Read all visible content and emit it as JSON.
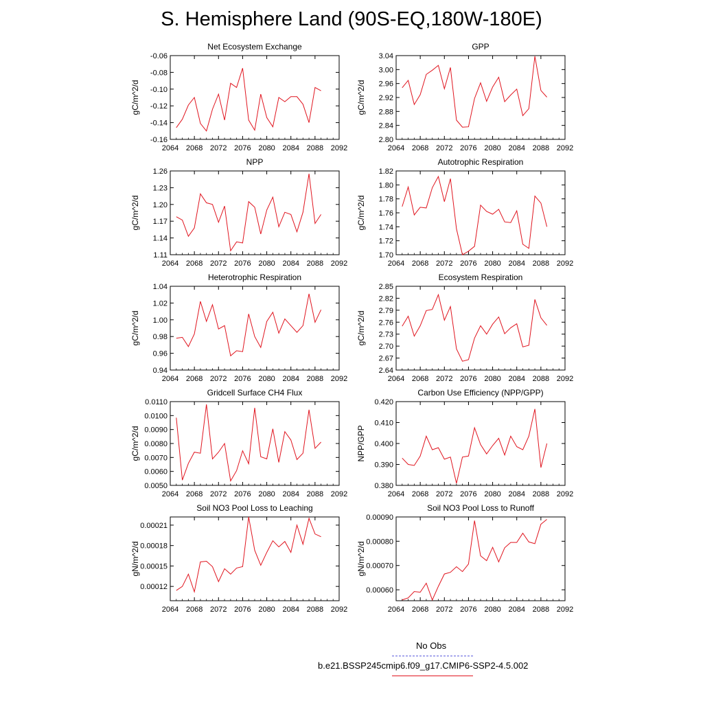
{
  "page": {
    "title": "S. Hemisphere Land (90S-EQ,180W-180E)"
  },
  "legend": {
    "obs_label": "No Obs",
    "obs_color": "#5a5adc",
    "model_label": "b.e21.BSSP245cmip6.f09_g17.CMIP6-SSP2-4.5.002",
    "model_color": "#e0141e"
  },
  "chart_data": [
    {
      "type": "line",
      "title": "Net Ecosystem Exchange",
      "ylabel": "gC/m^2/d",
      "xlim": [
        2064,
        2092
      ],
      "ylim": [
        -0.16,
        -0.06
      ],
      "xticks": [
        "2064",
        "2068",
        "2072",
        "2076",
        "2080",
        "2084",
        "2088",
        "2092"
      ],
      "yticks": [
        "-0.06",
        "-0.08",
        "-0.10",
        "-0.12",
        "-0.14",
        "-0.16"
      ],
      "x": [
        2065,
        2066,
        2067,
        2068,
        2069,
        2070,
        2071,
        2072,
        2073,
        2074,
        2075,
        2076,
        2077,
        2078,
        2079,
        2080,
        2081,
        2082,
        2083,
        2084,
        2085,
        2086,
        2087,
        2088,
        2089
      ],
      "y": [
        -0.146,
        -0.136,
        -0.119,
        -0.11,
        -0.141,
        -0.15,
        -0.124,
        -0.106,
        -0.137,
        -0.093,
        -0.098,
        -0.075,
        -0.137,
        -0.149,
        -0.106,
        -0.134,
        -0.145,
        -0.11,
        -0.115,
        -0.109,
        -0.109,
        -0.118,
        -0.14,
        -0.098,
        -0.102
      ]
    },
    {
      "type": "line",
      "title": "GPP",
      "ylabel": "gC/m^2/d",
      "xlim": [
        2064,
        2092
      ],
      "ylim": [
        2.8,
        3.04
      ],
      "xticks": [
        "2064",
        "2068",
        "2072",
        "2076",
        "2080",
        "2084",
        "2088",
        "2092"
      ],
      "yticks": [
        "3.04",
        "3.00",
        "2.96",
        "2.92",
        "2.88",
        "2.84",
        "2.80"
      ],
      "x": [
        2065,
        2066,
        2067,
        2068,
        2069,
        2070,
        2071,
        2072,
        2073,
        2074,
        2075,
        2076,
        2077,
        2078,
        2079,
        2080,
        2081,
        2082,
        2083,
        2084,
        2085,
        2086,
        2087,
        2088,
        2089
      ],
      "y": [
        2.948,
        2.969,
        2.9,
        2.928,
        2.986,
        2.998,
        3.012,
        2.945,
        3.006,
        2.855,
        2.835,
        2.836,
        2.917,
        2.962,
        2.909,
        2.95,
        2.978,
        2.908,
        2.927,
        2.944,
        2.868,
        2.888,
        3.038,
        2.94,
        2.921
      ]
    },
    {
      "type": "line",
      "title": "NPP",
      "ylabel": "gC/m^2/d",
      "xlim": [
        2064,
        2092
      ],
      "ylim": [
        1.11,
        1.26
      ],
      "xticks": [
        "2064",
        "2068",
        "2072",
        "2076",
        "2080",
        "2084",
        "2088",
        "2092"
      ],
      "yticks": [
        "1.26",
        "1.23",
        "1.20",
        "1.17",
        "1.14",
        "1.11"
      ],
      "x": [
        2065,
        2066,
        2067,
        2068,
        2069,
        2070,
        2071,
        2072,
        2073,
        2074,
        2075,
        2076,
        2077,
        2078,
        2079,
        2080,
        2081,
        2082,
        2083,
        2084,
        2085,
        2086,
        2087,
        2088,
        2089
      ],
      "y": [
        1.178,
        1.172,
        1.143,
        1.158,
        1.219,
        1.203,
        1.2,
        1.168,
        1.197,
        1.117,
        1.133,
        1.131,
        1.205,
        1.195,
        1.147,
        1.19,
        1.213,
        1.16,
        1.186,
        1.182,
        1.151,
        1.186,
        1.255,
        1.166,
        1.182
      ]
    },
    {
      "type": "line",
      "title": "Autotrophic Respiration",
      "ylabel": "gC/m^2/d",
      "xlim": [
        2064,
        2092
      ],
      "ylim": [
        1.7,
        1.82
      ],
      "xticks": [
        "2064",
        "2068",
        "2072",
        "2076",
        "2080",
        "2084",
        "2088",
        "2092"
      ],
      "yticks": [
        "1.82",
        "1.80",
        "1.78",
        "1.76",
        "1.74",
        "1.72",
        "1.70"
      ],
      "x": [
        2065,
        2066,
        2067,
        2068,
        2069,
        2070,
        2071,
        2072,
        2073,
        2074,
        2075,
        2076,
        2077,
        2078,
        2079,
        2080,
        2081,
        2082,
        2083,
        2084,
        2085,
        2086,
        2087,
        2088,
        2089
      ],
      "y": [
        1.769,
        1.797,
        1.757,
        1.768,
        1.767,
        1.796,
        1.812,
        1.776,
        1.809,
        1.737,
        1.7,
        1.705,
        1.712,
        1.771,
        1.762,
        1.758,
        1.765,
        1.747,
        1.746,
        1.763,
        1.715,
        1.709,
        1.784,
        1.774,
        1.74
      ]
    },
    {
      "type": "line",
      "title": "Heterotrophic Respiration",
      "ylabel": "gC/m^2/d",
      "xlim": [
        2064,
        2092
      ],
      "ylim": [
        0.94,
        1.04
      ],
      "xticks": [
        "2064",
        "2068",
        "2072",
        "2076",
        "2080",
        "2084",
        "2088",
        "2092"
      ],
      "yticks": [
        "1.04",
        "1.02",
        "1.00",
        "0.98",
        "0.96",
        "0.94"
      ],
      "x": [
        2065,
        2066,
        2067,
        2068,
        2069,
        2070,
        2071,
        2072,
        2073,
        2074,
        2075,
        2076,
        2077,
        2078,
        2079,
        2080,
        2081,
        2082,
        2083,
        2084,
        2085,
        2086,
        2087,
        2088,
        2089
      ],
      "y": [
        0.978,
        0.979,
        0.968,
        0.983,
        1.022,
        0.998,
        1.018,
        0.989,
        0.993,
        0.957,
        0.963,
        0.962,
        1.007,
        0.98,
        0.967,
        0.998,
        1.009,
        0.984,
        1.001,
        0.993,
        0.985,
        0.993,
        1.031,
        0.997,
        1.012
      ]
    },
    {
      "type": "line",
      "title": "Ecosystem Respiration",
      "ylabel": "gC/m^2/d",
      "xlim": [
        2064,
        2092
      ],
      "ylim": [
        2.64,
        2.85
      ],
      "xticks": [
        "2064",
        "2068",
        "2072",
        "2076",
        "2080",
        "2084",
        "2088",
        "2092"
      ],
      "yticks": [
        "2.85",
        "2.82",
        "2.79",
        "2.76",
        "2.73",
        "2.70",
        "2.67",
        "2.64"
      ],
      "x": [
        2065,
        2066,
        2067,
        2068,
        2069,
        2070,
        2071,
        2072,
        2073,
        2074,
        2075,
        2076,
        2077,
        2078,
        2079,
        2080,
        2081,
        2082,
        2083,
        2084,
        2085,
        2086,
        2087,
        2088,
        2089
      ],
      "y": [
        2.75,
        2.775,
        2.725,
        2.751,
        2.789,
        2.792,
        2.829,
        2.765,
        2.799,
        2.693,
        2.662,
        2.666,
        2.72,
        2.751,
        2.73,
        2.755,
        2.773,
        2.731,
        2.746,
        2.756,
        2.698,
        2.702,
        2.817,
        2.771,
        2.752
      ]
    },
    {
      "type": "line",
      "title": "Gridcell Surface CH4 Flux",
      "ylabel": "gC/m^2/d",
      "xlim": [
        2064,
        2092
      ],
      "ylim": [
        0.005,
        0.011
      ],
      "xticks": [
        "2064",
        "2068",
        "2072",
        "2076",
        "2080",
        "2084",
        "2088",
        "2092"
      ],
      "yticks": [
        "0.0110",
        "0.0100",
        "0.0090",
        "0.0080",
        "0.0070",
        "0.0060",
        "0.0050"
      ],
      "x": [
        2065,
        2066,
        2067,
        2068,
        2069,
        2070,
        2071,
        2072,
        2073,
        2074,
        2075,
        2076,
        2077,
        2078,
        2079,
        2080,
        2081,
        2082,
        2083,
        2084,
        2085,
        2086,
        2087,
        2088,
        2089
      ],
      "y": [
        0.00985,
        0.00538,
        0.00658,
        0.00738,
        0.0073,
        0.0108,
        0.0069,
        0.00738,
        0.008,
        0.00532,
        0.00605,
        0.00748,
        0.00655,
        0.01055,
        0.00705,
        0.0069,
        0.00905,
        0.00665,
        0.00885,
        0.00825,
        0.00685,
        0.0073,
        0.01042,
        0.00765,
        0.0081
      ]
    },
    {
      "type": "line",
      "title": "Carbon Use Efficiency (NPP/GPP)",
      "ylabel": "NPP/GPP",
      "xlim": [
        2064,
        2092
      ],
      "ylim": [
        0.38,
        0.42
      ],
      "xticks": [
        "2064",
        "2068",
        "2072",
        "2076",
        "2080",
        "2084",
        "2088",
        "2092"
      ],
      "yticks": [
        "0.420",
        "0.410",
        "0.400",
        "0.390",
        "0.380"
      ],
      "x": [
        2065,
        2066,
        2067,
        2068,
        2069,
        2070,
        2071,
        2072,
        2073,
        2074,
        2075,
        2076,
        2077,
        2078,
        2079,
        2080,
        2081,
        2082,
        2083,
        2084,
        2085,
        2086,
        2087,
        2088,
        2089
      ],
      "y": [
        0.393,
        0.39,
        0.3895,
        0.394,
        0.4035,
        0.397,
        0.398,
        0.3925,
        0.3935,
        0.381,
        0.3935,
        0.394,
        0.4075,
        0.3995,
        0.395,
        0.399,
        0.4025,
        0.3945,
        0.4035,
        0.3985,
        0.397,
        0.4035,
        0.4165,
        0.3885,
        0.4
      ]
    },
    {
      "type": "line",
      "title": "Soil NO3 Pool Loss to Leaching",
      "ylabel": "gN/m^2/d",
      "xlim": [
        2064,
        2092
      ],
      "ylim": [
        9.9e-05,
        0.000222
      ],
      "xticks": [
        "2064",
        "2068",
        "2072",
        "2076",
        "2080",
        "2084",
        "2088",
        "2092"
      ],
      "yticks": [
        "0.00021",
        "0.00018",
        "0.00015",
        "0.00012"
      ],
      "yticks_values": [
        0.00021,
        0.00018,
        0.00015,
        0.00012
      ],
      "x": [
        2065,
        2066,
        2067,
        2068,
        2069,
        2070,
        2071,
        2072,
        2073,
        2074,
        2075,
        2076,
        2077,
        2078,
        2079,
        2080,
        2081,
        2082,
        2083,
        2084,
        2085,
        2086,
        2087,
        2088,
        2089
      ],
      "y": [
        0.000114,
        0.00012,
        0.000138,
        0.000112,
        0.000156,
        0.000157,
        0.000149,
        0.000127,
        0.000146,
        0.000138,
        0.000147,
        0.000149,
        0.000222,
        0.000173,
        0.000151,
        0.00017,
        0.000187,
        0.000178,
        0.000186,
        0.00017,
        0.00021,
        0.000182,
        0.00022,
        0.000197,
        0.000193
      ]
    },
    {
      "type": "line",
      "title": "Soil NO3 Pool Loss to Runoff",
      "ylabel": "gN/m^2/d",
      "xlim": [
        2064,
        2092
      ],
      "ylim": [
        0.000555,
        0.0009
      ],
      "xticks": [
        "2064",
        "2068",
        "2072",
        "2076",
        "2080",
        "2084",
        "2088",
        "2092"
      ],
      "yticks": [
        "0.00090",
        "0.00080",
        "0.00070",
        "0.00060"
      ],
      "yticks_values": [
        0.0009,
        0.0008,
        0.0007,
        0.0006
      ],
      "x": [
        2065,
        2066,
        2067,
        2068,
        2069,
        2070,
        2071,
        2072,
        2073,
        2074,
        2075,
        2076,
        2077,
        2078,
        2079,
        2080,
        2081,
        2082,
        2083,
        2084,
        2085,
        2086,
        2087,
        2088,
        2089
      ],
      "y": [
        0.000558,
        0.000567,
        0.000593,
        0.00059,
        0.000627,
        0.000558,
        0.000614,
        0.000665,
        0.000672,
        0.000695,
        0.000675,
        0.000706,
        0.000885,
        0.00074,
        0.00072,
        0.000775,
        0.000715,
        0.000773,
        0.000795,
        0.000795,
        0.000833,
        0.000797,
        0.00079,
        0.00087,
        0.00089
      ]
    }
  ]
}
